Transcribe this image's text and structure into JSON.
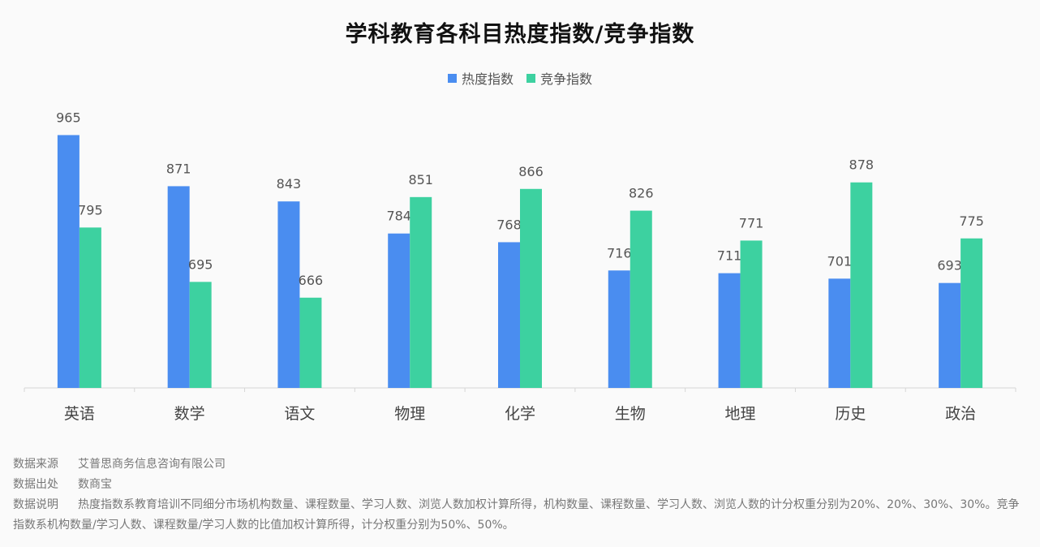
{
  "chart_data": {
    "type": "bar",
    "title": "学科教育各科目热度指数/竞争指数",
    "categories": [
      "英语",
      "数学",
      "语文",
      "物理",
      "化学",
      "生物",
      "地理",
      "历史",
      "政治"
    ],
    "series": [
      {
        "name": "热度指数",
        "color": "#4a8df0",
        "values": [
          965,
          871,
          843,
          784,
          768,
          716,
          711,
          701,
          693
        ]
      },
      {
        "name": "竞争指数",
        "color": "#3dd1a0",
        "values": [
          795,
          695,
          666,
          851,
          866,
          826,
          771,
          878,
          775
        ]
      }
    ],
    "ylim": [
      500,
      1000
    ],
    "legend_position": "top-center",
    "grid": false
  },
  "notes": {
    "source_label": "数据来源",
    "source_value": "艾普思商务信息咨询有限公司",
    "origin_label": "数据出处",
    "origin_value": "数商宝",
    "explain_label": "数据说明",
    "explain_value": "热度指数系教育培训不同细分市场机构数量、课程数量、学习人数、浏览人数加权计算所得，机构数量、课程数量、学习人数、浏览人数的计分权重分别为20%、20%、30%、30%。竞争指数系机构数量/学习人数、课程数量/学习人数的比值加权计算所得，计分权重分别为50%、50%。"
  }
}
